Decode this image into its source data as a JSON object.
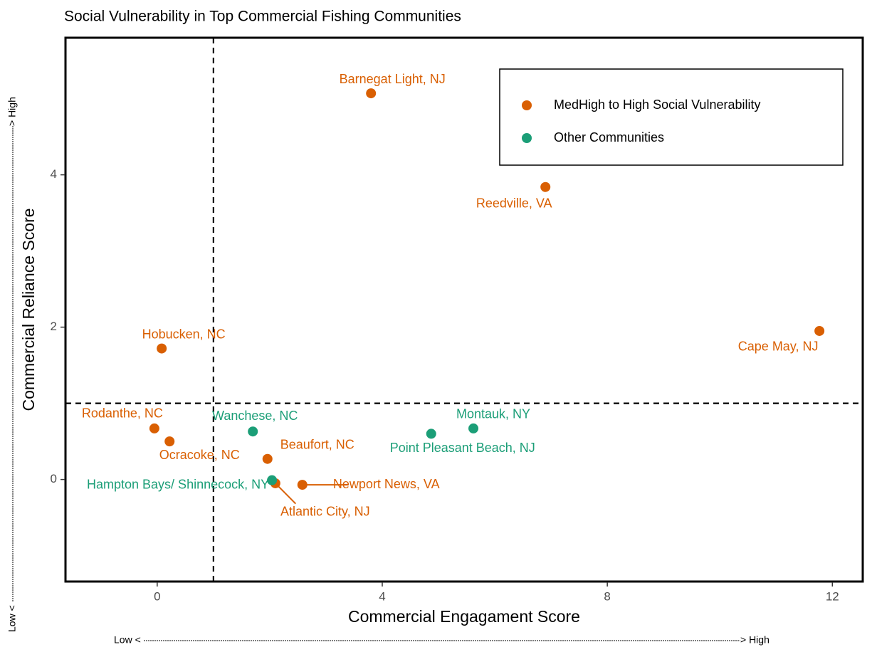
{
  "chart_data": {
    "type": "scatter",
    "title": "Social Vulnerability in Top Commercial Fishing Communities",
    "x_label": "Commercial Engagament Score",
    "y_label": "Commercial Reliance Score",
    "x_low": "Low <",
    "x_high": "> High",
    "y_low": "Low <",
    "y_high": "> High",
    "xlim": [
      -1.63,
      12.54
    ],
    "ylim": [
      -1.34,
      5.8
    ],
    "xticks": [
      0,
      4,
      8,
      12
    ],
    "yticks": [
      0,
      2,
      4
    ],
    "reference_x": 1,
    "reference_y": 1,
    "legend": "top-right",
    "series": [
      {
        "name": "MedHigh to High Social Vulnerability",
        "color": "#d95f02",
        "x": [
          3.8,
          6.9,
          11.77,
          0.08,
          -0.05,
          0.22,
          1.96,
          2.1,
          2.58
        ],
        "values": [
          5.07,
          3.84,
          1.95,
          1.72,
          0.67,
          0.5,
          0.27,
          -0.05,
          -0.07
        ],
        "labels": [
          "Barnegat Light, NJ",
          "Reedville, VA",
          "Cape May, NJ",
          "Hobucken, NC",
          "Rodanthe, NC",
          "Ocracoke, NC",
          "Beaufort, NC",
          "Atlantic City, NJ",
          "Newport News, VA"
        ]
      },
      {
        "name": "Other Communities",
        "color": "#1b9e77",
        "x": [
          1.7,
          2.04,
          4.87,
          5.62
        ],
        "values": [
          0.63,
          -0.01,
          0.6,
          0.67
        ],
        "labels": [
          "Wanchese, NC",
          "Hampton Bays/ Shinnecock, NY",
          "Point Pleasant Beach, NJ",
          "Montauk, NY"
        ]
      }
    ]
  }
}
